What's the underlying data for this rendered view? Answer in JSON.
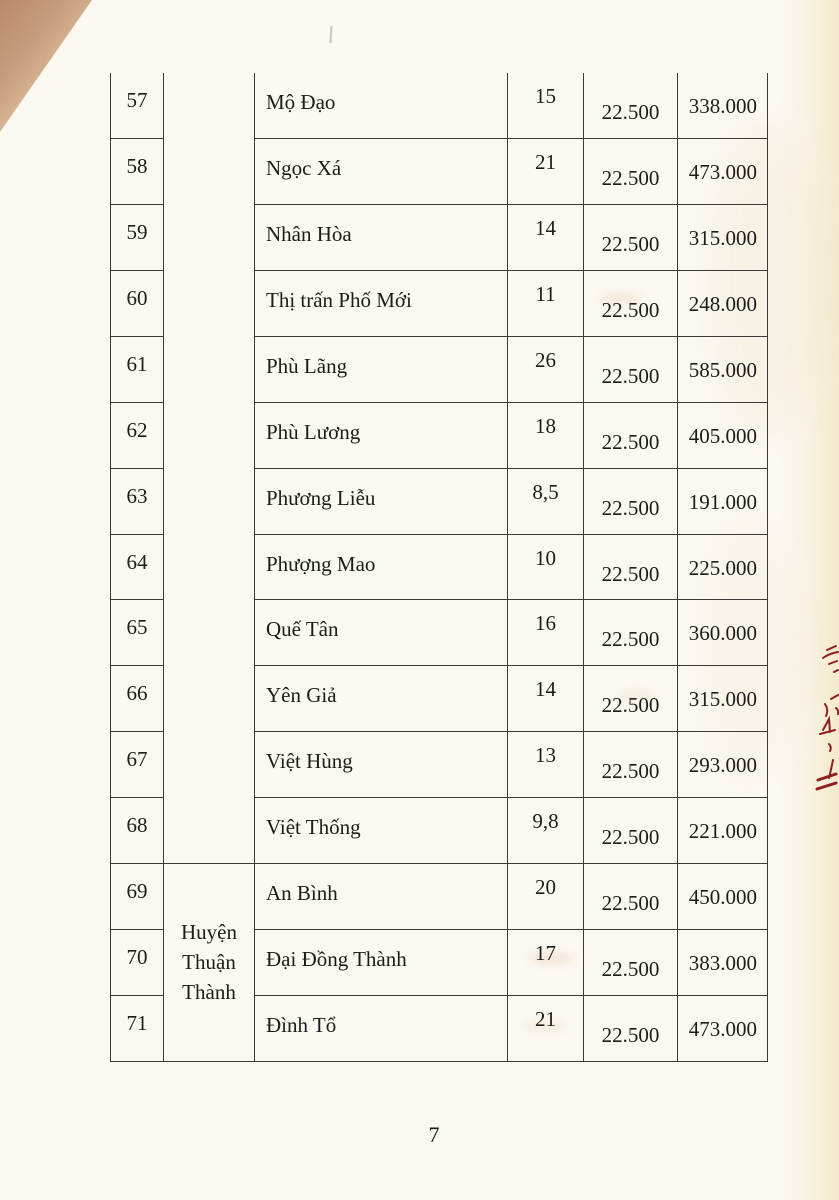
{
  "document": {
    "type": "scanned-table-page",
    "page_number": "7"
  },
  "table": {
    "rows": [
      {
        "no": "57",
        "name": "Mộ Đạo",
        "qty": "15",
        "price": "22.500",
        "total": "338.000"
      },
      {
        "no": "58",
        "name": "Ngọc Xá",
        "qty": "21",
        "price": "22.500",
        "total": "473.000"
      },
      {
        "no": "59",
        "name": "Nhân Hòa",
        "qty": "14",
        "price": "22.500",
        "total": "315.000"
      },
      {
        "no": "60",
        "name": "Thị trấn Phố Mới",
        "qty": "11",
        "price": "22.500",
        "total": "248.000"
      },
      {
        "no": "61",
        "name": "Phù Lãng",
        "qty": "26",
        "price": "22.500",
        "total": "585.000"
      },
      {
        "no": "62",
        "name": "Phù Lương",
        "qty": "18",
        "price": "22.500",
        "total": "405.000"
      },
      {
        "no": "63",
        "name": "Phương Liễu",
        "qty": "8,5",
        "price": "22.500",
        "total": "191.000"
      },
      {
        "no": "64",
        "name": "Phượng Mao",
        "qty": "10",
        "price": "22.500",
        "total": "225.000"
      },
      {
        "no": "65",
        "name": "Quế Tân",
        "qty": "16",
        "price": "22.500",
        "total": "360.000"
      },
      {
        "no": "66",
        "name": "Yên Giả",
        "qty": "14",
        "price": "22.500",
        "total": "315.000"
      },
      {
        "no": "67",
        "name": "Việt Hùng",
        "qty": "13",
        "price": "22.500",
        "total": "293.000"
      },
      {
        "no": "68",
        "name": "Việt Thống",
        "qty": "9,8",
        "price": "22.500",
        "total": "221.000"
      },
      {
        "no": "69",
        "name": "An Bình",
        "qty": "20",
        "price": "22.500",
        "total": "450.000"
      },
      {
        "no": "70",
        "name": "Đại Đồng Thành",
        "qty": "17",
        "price": "22.500",
        "total": "383.000"
      },
      {
        "no": "71",
        "name": "Đình Tổ",
        "qty": "21",
        "price": "22.500",
        "total": "473.000"
      }
    ],
    "district_groups": [
      {
        "label": "",
        "span": 12
      },
      {
        "label": "Huyện Thuận Thành",
        "span": 3
      }
    ]
  },
  "colors": {
    "paper": "#fbf8f2",
    "ink": "#1d1c1a",
    "table_line": "#3c3a36",
    "margin_note_ink": "#8e1f1f"
  }
}
